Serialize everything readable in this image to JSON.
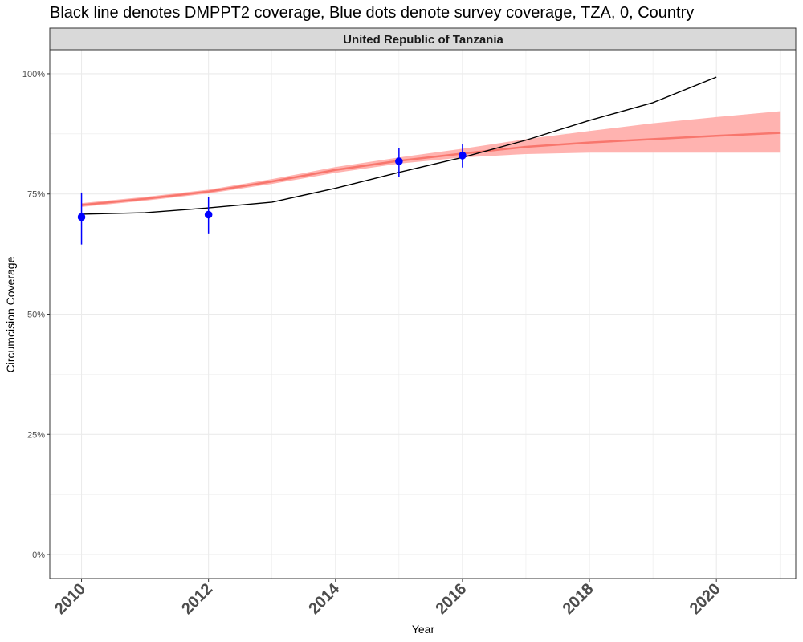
{
  "chart_data": {
    "type": "line",
    "title": "Black line denotes DMPPT2 coverage, Blue dots denote survey coverage, TZA, 0, Country",
    "facet_label": "United Republic of Tanzania",
    "xlabel": "Year",
    "ylabel": "Circumcision Coverage",
    "xlim": [
      2009.5,
      2021.25
    ],
    "ylim": [
      -0.05,
      1.05
    ],
    "x_ticks": [
      2010,
      2012,
      2014,
      2016,
      2018,
      2020
    ],
    "x_tick_labels": [
      "2010",
      "2012",
      "2014",
      "2016",
      "2018",
      "2020"
    ],
    "y_ticks": [
      0,
      0.25,
      0.5,
      0.75,
      1.0
    ],
    "y_tick_labels": [
      "0%",
      "25%",
      "50%",
      "75%",
      "100%"
    ],
    "grid": true,
    "colors": {
      "dmppt2": "#000000",
      "survey": "#0000ff",
      "model_line": "#f8766d",
      "model_band": "#ffb3b0",
      "strip_bg": "#d9d9d9",
      "grid": "#ebebeb"
    },
    "series": [
      {
        "key": "dmppt2",
        "x": [
          2010,
          2011,
          2012,
          2013,
          2014,
          2015,
          2016,
          2017,
          2018,
          2019,
          2020
        ],
        "y": [
          0.708,
          0.711,
          0.721,
          0.733,
          0.762,
          0.795,
          0.826,
          0.862,
          0.903,
          0.94,
          0.993
        ]
      },
      {
        "key": "survey",
        "x": [
          2010,
          2012,
          2015,
          2016
        ],
        "y": [
          0.702,
          0.707,
          0.818,
          0.83
        ],
        "lower": [
          0.645,
          0.668,
          0.786,
          0.805
        ],
        "upper": [
          0.753,
          0.743,
          0.845,
          0.853
        ]
      },
      {
        "key": "model",
        "x": [
          2010,
          2011,
          2012,
          2013,
          2014,
          2015,
          2016,
          2017,
          2018,
          2019,
          2020,
          2021
        ],
        "y": [
          0.727,
          0.74,
          0.755,
          0.776,
          0.8,
          0.819,
          0.834,
          0.848,
          0.857,
          0.864,
          0.871,
          0.877
        ],
        "lower": [
          0.723,
          0.736,
          0.751,
          0.771,
          0.794,
          0.813,
          0.826,
          0.833,
          0.836,
          0.836,
          0.836,
          0.836
        ],
        "upper": [
          0.731,
          0.744,
          0.759,
          0.781,
          0.806,
          0.826,
          0.844,
          0.864,
          0.881,
          0.897,
          0.91,
          0.922
        ]
      }
    ]
  }
}
